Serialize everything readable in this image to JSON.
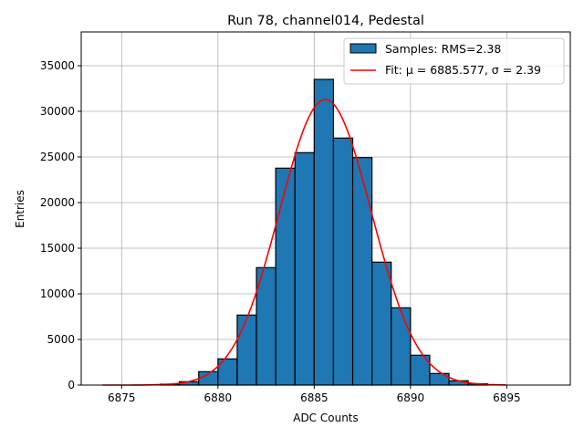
{
  "chart_data": {
    "type": "bar",
    "title": "Run 78, channel014, Pedestal",
    "xlabel": "ADC Counts",
    "ylabel": "Entries",
    "xlim": [
      6872.9,
      6898.3
    ],
    "ylim": [
      0,
      38700
    ],
    "xticks": [
      6875,
      6880,
      6885,
      6890,
      6895
    ],
    "yticks": [
      0,
      5000,
      10000,
      15000,
      20000,
      25000,
      30000,
      35000
    ],
    "grid": true,
    "legend_position": "top-right",
    "bins": [
      6877,
      6878,
      6879,
      6880,
      6881,
      6882,
      6883,
      6884,
      6885,
      6886,
      6887,
      6888,
      6889,
      6890,
      6891,
      6892,
      6893
    ],
    "bin_width": 1,
    "values": [
      100,
      370,
      1470,
      2870,
      7670,
      12870,
      23770,
      25470,
      33500,
      27070,
      24930,
      13470,
      8470,
      3270,
      1270,
      470,
      150
    ],
    "bar_color": "#1f77b4",
    "fit": {
      "mu": 6885.577,
      "sigma": 2.39,
      "amplitude": 31300,
      "range": [
        6874,
        6895
      ],
      "color": "#ff0000"
    },
    "legend": [
      "Samples: RMS=2.38",
      "Fit: μ = 6885.577, σ = 2.39"
    ]
  }
}
